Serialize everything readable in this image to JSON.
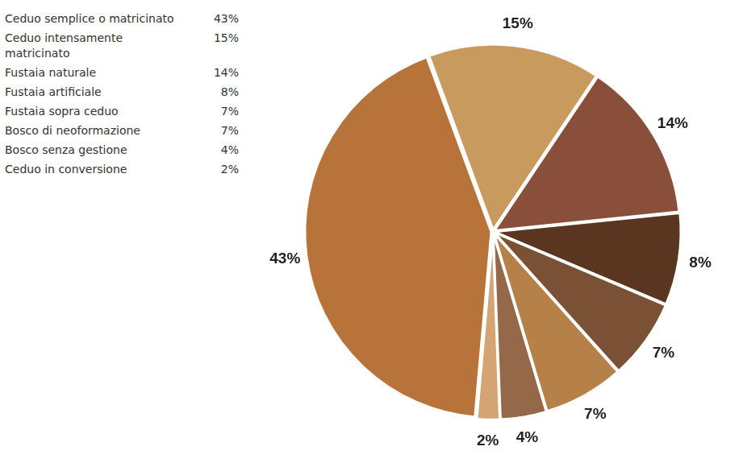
{
  "chart_data": {
    "type": "pie",
    "categories": [
      "Ceduo semplice o matricinato",
      "Ceduo intensamente matricinato",
      "Fustaia naturale",
      "Fustaia artificiale",
      "Fustaia sopra ceduo",
      "Bosco di neoformazione",
      "Bosco senza gestione",
      "Ceduo in conversione"
    ],
    "values": [
      43,
      15,
      14,
      8,
      7,
      7,
      4,
      2
    ],
    "value_labels": [
      "43%",
      "15%",
      "14%",
      "8%",
      "7%",
      "7%",
      "4%",
      "2%"
    ],
    "colors": [
      "#b8733a",
      "#c99a5e",
      "#8a4f3a",
      "#5a3620",
      "#7a5134",
      "#b58149",
      "#946848",
      "#d4a474"
    ],
    "data_labels": true,
    "legend": "left"
  }
}
